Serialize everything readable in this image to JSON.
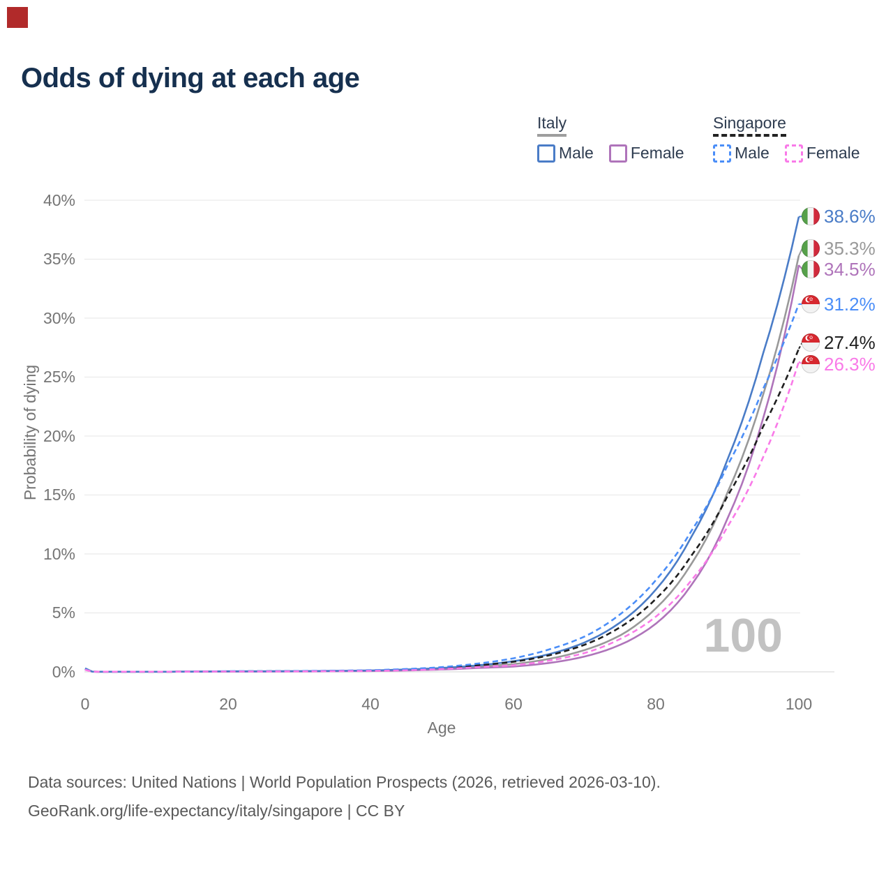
{
  "corner_mark": {
    "color": "#b12a2a"
  },
  "title": {
    "text": "Odds of dying at each age",
    "color": "#16304f"
  },
  "legend": {
    "groups": [
      {
        "label": "Italy",
        "line_style": "solid",
        "underline_color": "#9e9e9e",
        "items": [
          {
            "label": "Male",
            "color": "#4a7cc7",
            "dashed": false
          },
          {
            "label": "Female",
            "color": "#af74ba",
            "dashed": false
          }
        ]
      },
      {
        "label": "Singapore",
        "line_style": "dashed",
        "underline_color": "#222222",
        "items": [
          {
            "label": "Male",
            "color": "#4b8ef8",
            "dashed": true
          },
          {
            "label": "Female",
            "color": "#f97ae8",
            "dashed": true
          }
        ]
      }
    ],
    "text_color": "#2e3c50"
  },
  "chart_data": {
    "type": "line",
    "title": "Odds of dying at each age",
    "xlabel": "Age",
    "ylabel": "Probability of dying",
    "xlim": [
      0,
      100
    ],
    "ylim": [
      0,
      40
    ],
    "grid": true,
    "xticks": [
      "0",
      "20",
      "40",
      "60",
      "80",
      "100"
    ],
    "yticks": [
      "0%",
      "5%",
      "10%",
      "15%",
      "20%",
      "25%",
      "30%",
      "35%",
      "40%"
    ],
    "hover_age_watermark": {
      "text": "100",
      "color": "#c2c2c2"
    },
    "x": [
      0,
      1,
      2,
      5,
      10,
      15,
      20,
      25,
      30,
      35,
      40,
      45,
      50,
      55,
      60,
      65,
      70,
      75,
      80,
      85,
      90,
      95,
      100
    ],
    "series": [
      {
        "name": "Italy Male",
        "country": "Italy",
        "flag": "italy-flag-icon",
        "color": "#4a7cc7",
        "dashed": false,
        "values": [
          0.3,
          0.02,
          0.01,
          0.01,
          0.01,
          0.02,
          0.05,
          0.05,
          0.06,
          0.08,
          0.12,
          0.2,
          0.33,
          0.55,
          0.9,
          1.5,
          2.5,
          4.2,
          7.0,
          11.5,
          18.0,
          27.0,
          38.6
        ],
        "end_label": "38.6%"
      },
      {
        "name": "Italy Both sexes",
        "country": "Italy",
        "flag": "italy-flag-icon",
        "color": "#999999",
        "dashed": false,
        "values": [
          0.27,
          0.02,
          0.01,
          0.01,
          0.01,
          0.02,
          0.04,
          0.04,
          0.05,
          0.06,
          0.1,
          0.16,
          0.27,
          0.45,
          0.65,
          1.1,
          1.85,
          3.1,
          5.4,
          9.2,
          15.2,
          23.5,
          35.3
        ],
        "end_label": "35.3%"
      },
      {
        "name": "Italy Female",
        "country": "Italy",
        "flag": "italy-flag-icon",
        "color": "#af74ba",
        "dashed": false,
        "values": [
          0.25,
          0.02,
          0.01,
          0.01,
          0.01,
          0.01,
          0.02,
          0.02,
          0.03,
          0.05,
          0.07,
          0.12,
          0.2,
          0.33,
          0.45,
          0.75,
          1.3,
          2.3,
          4.1,
          7.4,
          13.0,
          21.5,
          34.5
        ],
        "end_label": "34.5%"
      },
      {
        "name": "Singapore Male",
        "country": "Singapore",
        "flag": "singapore-flag-icon",
        "color": "#4b8ef8",
        "dashed": true,
        "values": [
          0.22,
          0.02,
          0.01,
          0.01,
          0.01,
          0.03,
          0.05,
          0.06,
          0.07,
          0.1,
          0.14,
          0.24,
          0.4,
          0.7,
          1.15,
          1.9,
          3.0,
          4.9,
          7.8,
          12.0,
          17.5,
          24.0,
          31.2
        ],
        "end_label": "31.2%"
      },
      {
        "name": "Singapore Both sexes",
        "country": "Singapore",
        "flag": "singapore-flag-icon",
        "color": "#1f1f1f",
        "dashed": true,
        "values": [
          0.2,
          0.02,
          0.01,
          0.01,
          0.01,
          0.02,
          0.04,
          0.05,
          0.06,
          0.08,
          0.11,
          0.19,
          0.32,
          0.55,
          0.85,
          1.4,
          2.3,
          3.8,
          6.2,
          9.9,
          14.9,
          20.8,
          27.4
        ],
        "end_label": "27.4%"
      },
      {
        "name": "Singapore Female",
        "country": "Singapore",
        "flag": "singapore-flag-icon",
        "color": "#f97ae8",
        "dashed": true,
        "values": [
          0.18,
          0.01,
          0.01,
          0.01,
          0.01,
          0.02,
          0.03,
          0.03,
          0.04,
          0.06,
          0.08,
          0.13,
          0.24,
          0.4,
          0.55,
          0.95,
          1.6,
          2.8,
          4.7,
          7.8,
          12.3,
          18.2,
          26.3
        ],
        "end_label": "26.3%"
      }
    ]
  },
  "footer": {
    "line1": "Data sources: United Nations | World Population Prospects (2026, retrieved 2026-03-10).",
    "line2": "GeoRank.org/life-expectancy/italy/singapore | CC BY"
  }
}
